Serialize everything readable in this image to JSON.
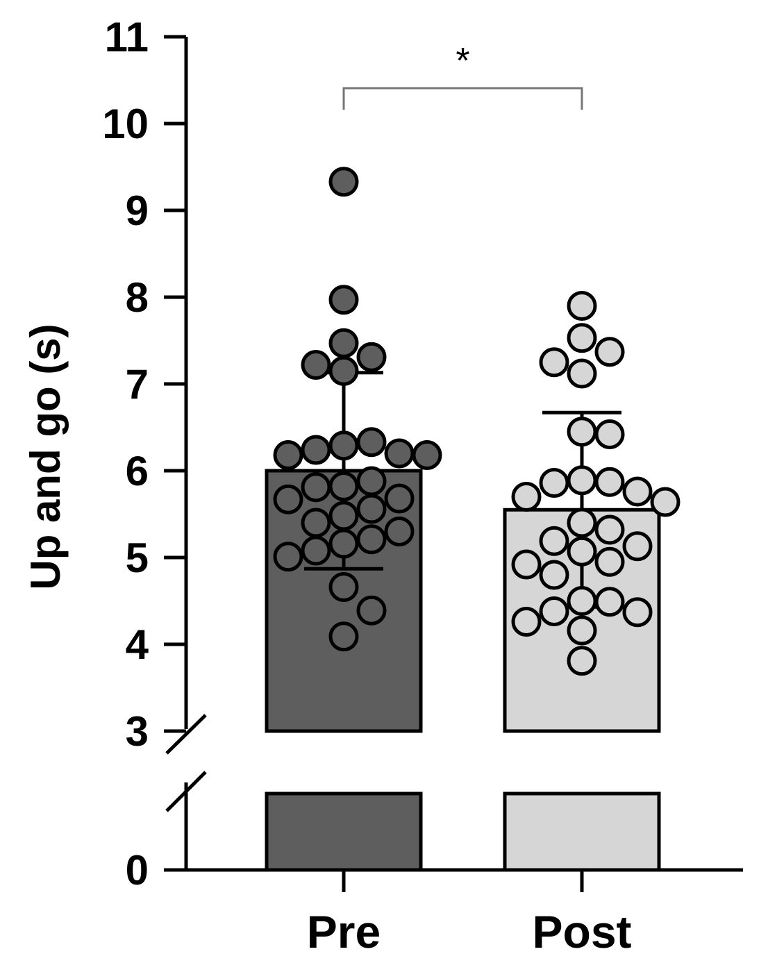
{
  "chart_data": {
    "type": "bar",
    "title": "",
    "xlabel": "",
    "ylabel": "Up and go (s)",
    "categories": [
      "Pre",
      "Post"
    ],
    "ylim": [
      0,
      11
    ],
    "axis_break": [
      1.6,
      3
    ],
    "y_ticks_lower": [
      0
    ],
    "y_ticks_upper": [
      3,
      4,
      5,
      6,
      7,
      8,
      9,
      10,
      11
    ],
    "grid": false,
    "series": [
      {
        "category": "Pre",
        "mean": 6.0,
        "sd": 1.13,
        "bar_color": "#5e5e5e",
        "point_color": "#5e5e5e",
        "points": [
          9.33,
          7.97,
          7.47,
          7.31,
          7.22,
          7.15,
          6.29,
          6.33,
          6.24,
          6.2,
          6.18,
          6.18,
          5.82,
          5.88,
          5.81,
          5.68,
          5.67,
          5.56,
          5.48,
          5.4,
          5.3,
          5.21,
          5.16,
          5.08,
          5.01,
          4.66,
          4.39,
          4.09
        ]
      },
      {
        "category": "Post",
        "mean": 5.55,
        "sd": 1.12,
        "bar_color": "#d6d6d6",
        "point_color": "#d6d6d6",
        "points": [
          7.9,
          7.53,
          7.37,
          7.25,
          7.12,
          6.45,
          6.42,
          5.89,
          5.87,
          5.86,
          5.76,
          5.7,
          5.64,
          5.4,
          5.32,
          5.19,
          5.13,
          5.07,
          4.95,
          4.92,
          4.8,
          4.5,
          4.49,
          4.38,
          4.37,
          4.26,
          4.16,
          3.81
        ]
      }
    ],
    "significance": {
      "between": [
        "Pre",
        "Post"
      ],
      "label": "*"
    }
  }
}
